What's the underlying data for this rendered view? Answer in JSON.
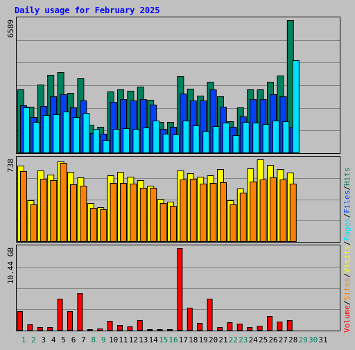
{
  "chart_data": [
    {
      "type": "bar",
      "title": "Daily usage for February 2025",
      "ymax_label": "6589",
      "ylim": [
        0,
        6589
      ],
      "categories": [
        "1",
        "2",
        "3",
        "4",
        "5",
        "6",
        "7",
        "8",
        "9",
        "10",
        "11",
        "12",
        "13",
        "14",
        "15",
        "16",
        "17",
        "18",
        "19",
        "20",
        "21",
        "22",
        "23",
        "24",
        "25",
        "26",
        "27",
        "28",
        "29",
        "30",
        "31"
      ],
      "weekend_days": [
        "1",
        "2",
        "8",
        "9",
        "15",
        "16",
        "22",
        "23",
        "29",
        "30"
      ],
      "series": [
        {
          "name": "Hits",
          "color": "#00805c",
          "values": [
            3150,
            2300,
            3400,
            3870,
            4000,
            3000,
            3700,
            1400,
            1300,
            3050,
            3150,
            3100,
            3300,
            2650,
            1550,
            1540,
            3800,
            3200,
            2850,
            3550,
            2800,
            1580,
            2250,
            3150,
            3150,
            3550,
            3850,
            6589,
            0,
            0,
            0
          ]
        },
        {
          "name": "Files",
          "color": "#0040ff",
          "values": [
            2370,
            1780,
            2350,
            2830,
            2900,
            2250,
            2600,
            980,
            950,
            2550,
            2680,
            2600,
            2680,
            2400,
            1190,
            1300,
            2950,
            2600,
            2620,
            3150,
            2300,
            1290,
            1810,
            2680,
            2680,
            2920,
            2800,
            1300,
            0,
            0,
            0
          ]
        },
        {
          "name": "Pages",
          "color": "#00e0ff",
          "values": [
            2250,
            1550,
            1880,
            1920,
            2050,
            1800,
            2000,
            1200,
            650,
            1200,
            1250,
            1200,
            1280,
            1600,
            970,
            920,
            1620,
            1370,
            1100,
            1350,
            1500,
            880,
            1550,
            1520,
            1450,
            1630,
            1570,
            4600,
            0,
            0,
            0
          ]
        }
      ]
    },
    {
      "type": "bar",
      "ymax_label": "738",
      "ylim": [
        0,
        738
      ],
      "categories": [
        "1",
        "2",
        "3",
        "4",
        "5",
        "6",
        "7",
        "8",
        "9",
        "10",
        "11",
        "12",
        "13",
        "14",
        "15",
        "16",
        "17",
        "18",
        "19",
        "20",
        "21",
        "22",
        "23",
        "24",
        "25",
        "26",
        "27",
        "28",
        "29",
        "30",
        "31"
      ],
      "series": [
        {
          "name": "Visits",
          "color": "#ffff00",
          "values": [
            680,
            375,
            640,
            600,
            720,
            625,
            575,
            350,
            310,
            595,
            625,
            580,
            550,
            500,
            385,
            360,
            640,
            615,
            580,
            595,
            650,
            370,
            480,
            660,
            738,
            690,
            650,
            620,
            0,
            0,
            0
          ]
        },
        {
          "name": "Sites",
          "color": "#ff8000",
          "values": [
            630,
            335,
            565,
            555,
            710,
            515,
            505,
            305,
            290,
            530,
            525,
            520,
            485,
            485,
            345,
            325,
            560,
            565,
            520,
            525,
            535,
            335,
            440,
            540,
            560,
            575,
            560,
            520,
            0,
            0,
            0
          ]
        }
      ]
    },
    {
      "type": "bar",
      "ymax_label": "10.44 GB",
      "ylim": [
        0,
        10.44
      ],
      "unit": "GB",
      "categories": [
        "1",
        "2",
        "3",
        "4",
        "5",
        "6",
        "7",
        "8",
        "9",
        "10",
        "11",
        "12",
        "13",
        "14",
        "15",
        "16",
        "17",
        "18",
        "19",
        "20",
        "21",
        "22",
        "23",
        "24",
        "25",
        "26",
        "27",
        "28",
        "29",
        "30",
        "31"
      ],
      "series": [
        {
          "name": "Volume",
          "color": "#ff0000",
          "values": [
            2.5,
            0.78,
            0.4,
            0.42,
            4.05,
            2.42,
            4.75,
            0.15,
            0.3,
            1.22,
            0.68,
            0.55,
            1.3,
            0.15,
            0.2,
            0.2,
            10.44,
            2.9,
            1.0,
            4.05,
            0.4,
            1.02,
            0.85,
            0.45,
            0.6,
            1.85,
            1.15,
            1.28,
            0,
            0,
            0
          ]
        }
      ]
    }
  ],
  "legend": [
    {
      "label": "Hits",
      "color": "#00805c"
    },
    {
      "label": "Files",
      "color": "#0040ff"
    },
    {
      "label": "Pages",
      "color": "#00e0ff"
    },
    {
      "label": "Visits",
      "color": "#ffff00"
    },
    {
      "label": "Sites",
      "color": "#ff8000"
    },
    {
      "label": "Volume",
      "color": "#ff0000"
    }
  ],
  "legend_separator": "/",
  "colors": {
    "background": "#c0c0c0",
    "title": "#0000ff",
    "weekday_label": "#000000",
    "weekend_label": "#00805c",
    "gridline": "#808080"
  }
}
